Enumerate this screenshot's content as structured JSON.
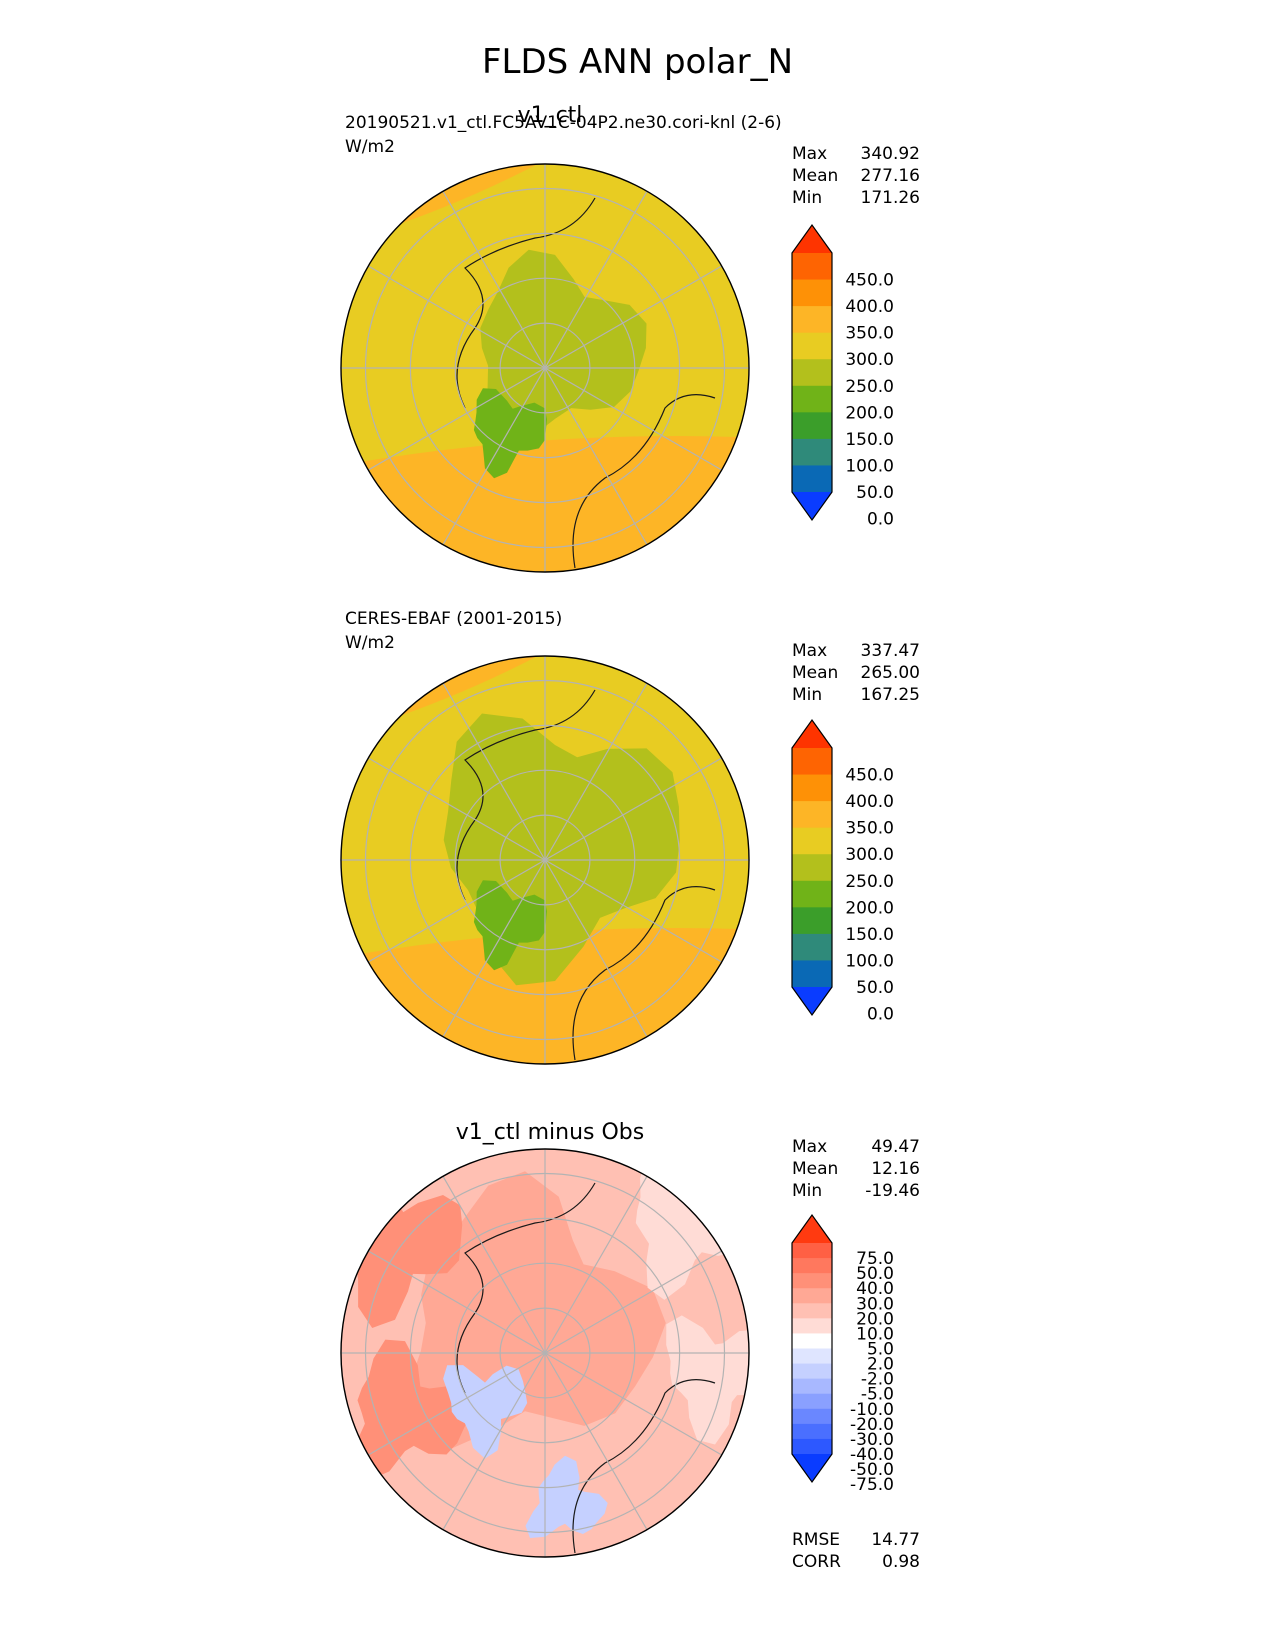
{
  "title": "FLDS ANN polar_N",
  "colors": {
    "map_levels": [
      "#0a3cff",
      "#0a69b5",
      "#2f8a7a",
      "#3b9e2a",
      "#70b318",
      "#b3c01c",
      "#e8cc22",
      "#fdb526",
      "#fe9106",
      "#fe6402",
      "#fe3400"
    ],
    "diff_levels": [
      "#0a3cff",
      "#2d58ff",
      "#4a6fff",
      "#6a87ff",
      "#8aa0ff",
      "#a8b8ff",
      "#c5d0ff",
      "#dfe5ff",
      "#ffffff",
      "#ffdcd6",
      "#ffc0b3",
      "#ffa895",
      "#ff9078",
      "#ff785e",
      "#ff6044",
      "#ff3a10"
    ]
  },
  "chart_data": [
    {
      "type": "heatmap",
      "projection": "north polar stereographic",
      "title": "v1_ctl",
      "left_title": "20190521.v1_ctl.FC5AV1C-04P2.ne30.cori-knl (2-6)",
      "units": "W/m2",
      "stats": [
        {
          "label": "Max",
          "value": "340.92"
        },
        {
          "label": "Mean",
          "value": "277.16"
        },
        {
          "label": "Min",
          "value": "171.26"
        }
      ],
      "colorbar": {
        "ticks": [
          "450.0",
          "400.0",
          "350.0",
          "300.0",
          "250.0",
          "200.0",
          "150.0",
          "100.0",
          "50.0",
          "0.0"
        ],
        "extend": "both"
      }
    },
    {
      "type": "heatmap",
      "projection": "north polar stereographic",
      "title": "",
      "left_title": "CERES-EBAF (2001-2015)",
      "units": "W/m2",
      "stats": [
        {
          "label": "Max",
          "value": "337.47"
        },
        {
          "label": "Mean",
          "value": "265.00"
        },
        {
          "label": "Min",
          "value": "167.25"
        }
      ],
      "colorbar": {
        "ticks": [
          "450.0",
          "400.0",
          "350.0",
          "300.0",
          "250.0",
          "200.0",
          "150.0",
          "100.0",
          "50.0",
          "0.0"
        ],
        "extend": "both"
      }
    },
    {
      "type": "heatmap",
      "projection": "north polar stereographic",
      "title": "v1_ctl minus Obs",
      "left_title": "",
      "units": "",
      "stats": [
        {
          "label": "Max",
          "value": "49.47"
        },
        {
          "label": "Mean",
          "value": "12.16"
        },
        {
          "label": "Min",
          "value": "-19.46"
        }
      ],
      "colorbar": {
        "ticks": [
          "75.0",
          "50.0",
          "40.0",
          "30.0",
          "20.0",
          "10.0",
          "5.0",
          "2.0",
          "-2.0",
          "-5.0",
          "-10.0",
          "-20.0",
          "-30.0",
          "-40.0",
          "-50.0",
          "-75.0"
        ],
        "extend": "both"
      },
      "metrics": [
        {
          "label": "RMSE",
          "value": "14.77"
        },
        {
          "label": "CORR",
          "value": "0.98"
        }
      ]
    }
  ]
}
